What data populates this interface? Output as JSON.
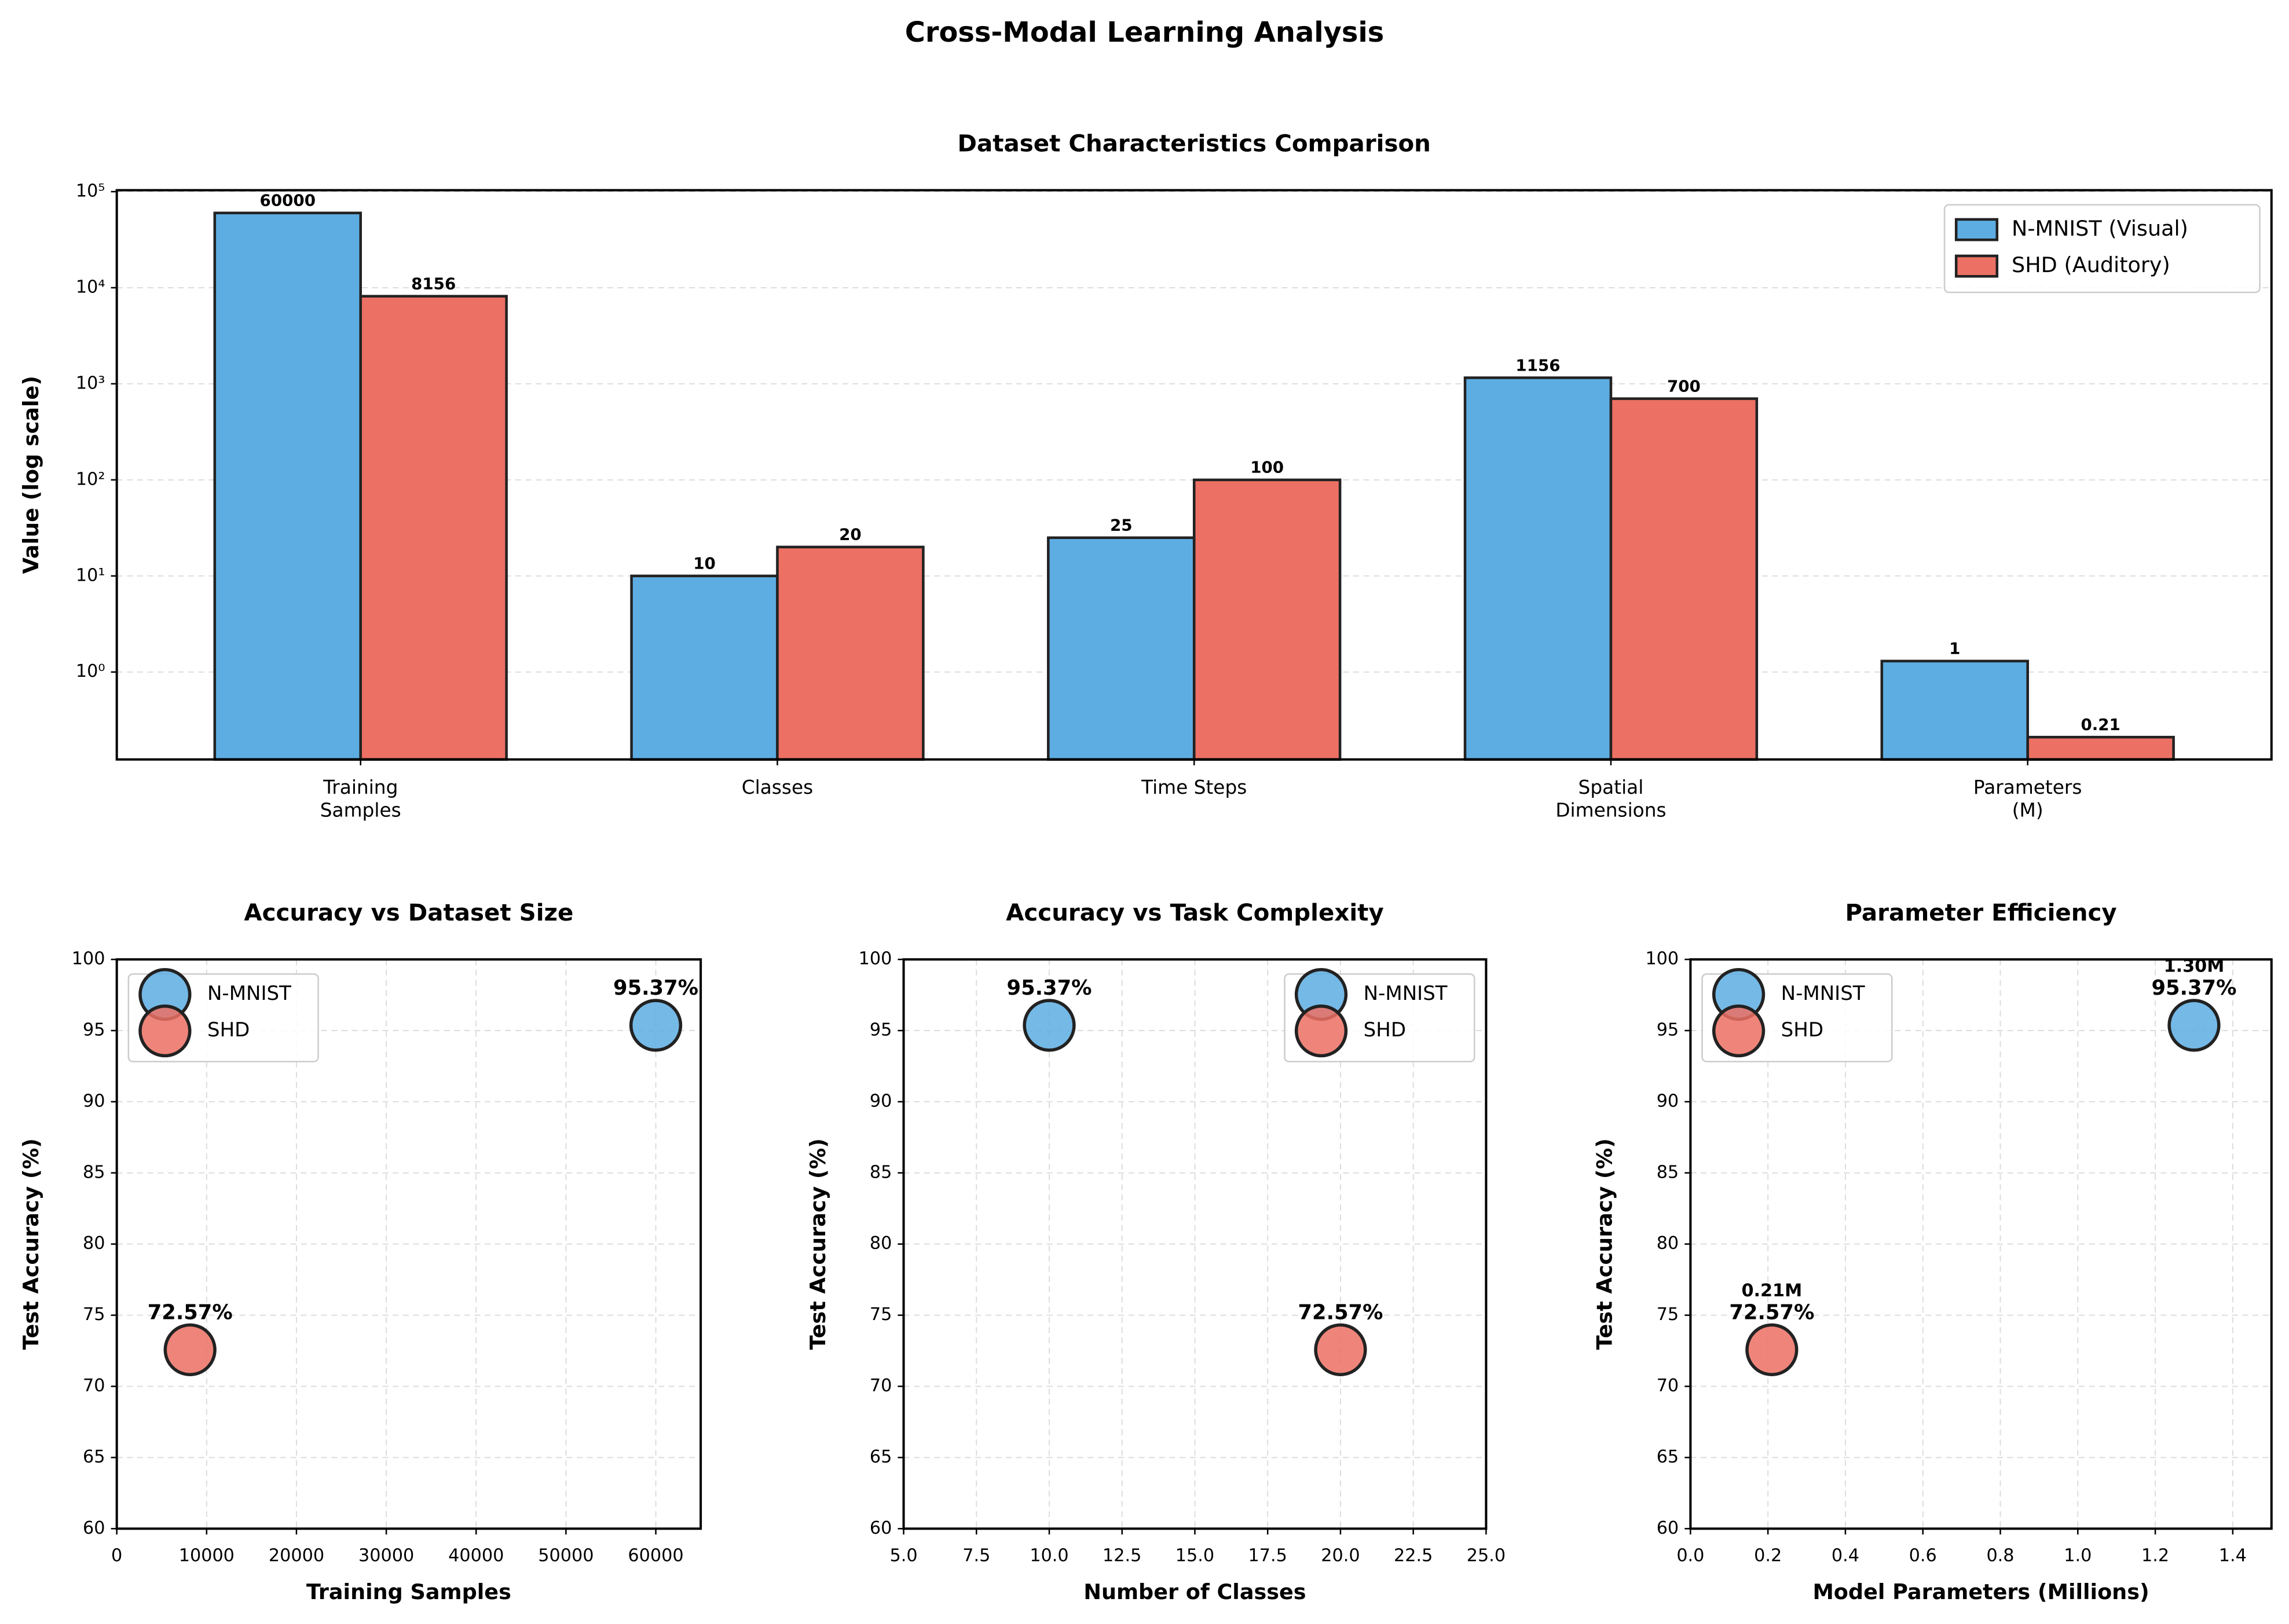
{
  "title": "Cross-Modal Learning Analysis",
  "chart_data": [
    {
      "type": "bar",
      "title": "Dataset Characteristics Comparison",
      "ylabel": "Value (log scale)",
      "yscale": "log",
      "categories": [
        "Training\nSamples",
        "Classes",
        "Time Steps",
        "Spatial\nDimensions",
        "Parameters\n(M)"
      ],
      "series": [
        {
          "name": "N-MNIST (Visual)",
          "color": "#5DADE2",
          "values": [
            60000,
            10,
            25,
            1156,
            1.3
          ],
          "value_labels": [
            "60000",
            "10",
            "25",
            "1156",
            "1"
          ]
        },
        {
          "name": "SHD (Auditory)",
          "color": "#EC7063",
          "values": [
            8156,
            20,
            100,
            700,
            0.21
          ],
          "value_labels": [
            "8156",
            "20",
            "100",
            "700",
            "0.21"
          ]
        }
      ],
      "ylim": [
        0.123,
        103500
      ],
      "yticks": [
        {
          "value": 1,
          "label": "10⁰"
        },
        {
          "value": 10,
          "label": "10¹"
        },
        {
          "value": 100,
          "label": "10²"
        },
        {
          "value": 1000,
          "label": "10³"
        },
        {
          "value": 10000,
          "label": "10⁴"
        },
        {
          "value": 100000,
          "label": "10⁵"
        }
      ],
      "grid": "y",
      "legend": "upper right"
    },
    {
      "type": "scatter",
      "title": "Accuracy vs Dataset Size",
      "xlabel": "Training Samples",
      "ylabel": "Test Accuracy (%)",
      "series": [
        {
          "name": "N-MNIST",
          "color": "#5DADE2",
          "x": [
            60000
          ],
          "values": [
            95.37
          ],
          "value_labels": [
            "95.37%"
          ]
        },
        {
          "name": "SHD",
          "color": "#EC7063",
          "x": [
            8156
          ],
          "values": [
            72.57
          ],
          "value_labels": [
            "72.57%"
          ]
        }
      ],
      "xlim": [
        0,
        65000
      ],
      "xticks": [
        0,
        10000,
        20000,
        30000,
        40000,
        50000,
        60000
      ],
      "ylim": [
        60,
        100
      ],
      "yticks": [
        60,
        65,
        70,
        75,
        80,
        85,
        90,
        95,
        100
      ],
      "grid": "both",
      "legend": "upper left"
    },
    {
      "type": "scatter",
      "title": "Accuracy vs Task Complexity",
      "xlabel": "Number of Classes",
      "ylabel": "Test Accuracy (%)",
      "series": [
        {
          "name": "N-MNIST",
          "color": "#5DADE2",
          "x": [
            10
          ],
          "values": [
            95.37
          ],
          "value_labels": [
            "95.37%"
          ]
        },
        {
          "name": "SHD",
          "color": "#EC7063",
          "x": [
            20
          ],
          "values": [
            72.57
          ],
          "value_labels": [
            "72.57%"
          ]
        }
      ],
      "xlim": [
        5,
        25
      ],
      "xticks": [
        {
          "value": 5,
          "label": "5.0"
        },
        7.5,
        {
          "value": 10,
          "label": "10.0"
        },
        12.5,
        {
          "value": 15,
          "label": "15.0"
        },
        17.5,
        {
          "value": 20,
          "label": "20.0"
        },
        22.5,
        {
          "value": 25,
          "label": "25.0"
        }
      ],
      "ylim": [
        60,
        100
      ],
      "yticks": [
        60,
        65,
        70,
        75,
        80,
        85,
        90,
        95,
        100
      ],
      "grid": "both",
      "legend": "upper right"
    },
    {
      "type": "scatter",
      "title": "Parameter Efficiency",
      "xlabel": "Model Parameters (Millions)",
      "ylabel": "Test Accuracy (%)",
      "series": [
        {
          "name": "N-MNIST",
          "color": "#5DADE2",
          "x": [
            1.3
          ],
          "x_labels": [
            "1.30M"
          ],
          "values": [
            95.37
          ],
          "value_labels": [
            "95.37%"
          ]
        },
        {
          "name": "SHD",
          "color": "#EC7063",
          "x": [
            0.21
          ],
          "x_labels": [
            "0.21M"
          ],
          "values": [
            72.57
          ],
          "value_labels": [
            "72.57%"
          ]
        }
      ],
      "xlim": [
        0,
        1.5
      ],
      "xticks": [
        {
          "value": 0,
          "label": "0.0"
        },
        0.2,
        0.4,
        0.6,
        0.8,
        {
          "value": 1,
          "label": "1.0"
        },
        1.2,
        1.4
      ],
      "ylim": [
        60,
        100
      ],
      "yticks": [
        60,
        65,
        70,
        75,
        80,
        85,
        90,
        95,
        100
      ],
      "grid": "both",
      "legend": "upper left"
    }
  ]
}
